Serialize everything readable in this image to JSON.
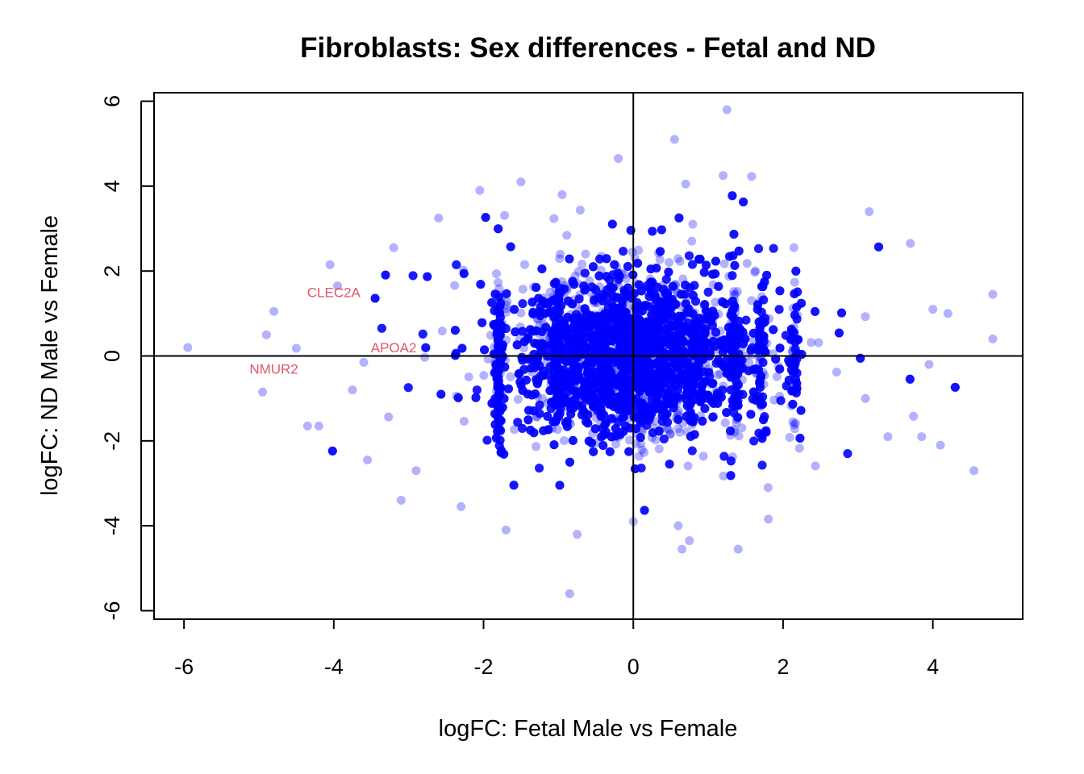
{
  "chart_data": {
    "type": "scatter",
    "title": "Fibroblasts: Sex differences - Fetal and ND",
    "xlabel": "logFC: Fetal Male vs Female",
    "ylabel": "logFC: ND Male vs Female",
    "xlim": [
      -6.4,
      5.2
    ],
    "ylim": [
      -6.2,
      6.2
    ],
    "x_ticks": [
      "-6",
      "-4",
      "-2",
      "0",
      "2",
      "4"
    ],
    "y_ticks": [
      "-6",
      "-4",
      "-2",
      "0",
      "2",
      "4",
      "6"
    ],
    "reference_lines": {
      "x": 0,
      "y": 0
    },
    "point_color": "#0000ff",
    "label_color": "#e3546a",
    "approx_point_count": 12000,
    "center_cloud": {
      "x_sd": 0.7,
      "y_sd": 0.85
    },
    "labeled_points": [
      {
        "label": "CLEC2A",
        "x": -4.0,
        "y": 1.5
      },
      {
        "label": "APOA2",
        "x": -3.2,
        "y": 0.2
      },
      {
        "label": "NMUR2",
        "x": -4.8,
        "y": -0.3
      }
    ],
    "outlier_points": [
      {
        "x": -5.95,
        "y": 0.2
      },
      {
        "x": -4.8,
        "y": 1.05
      },
      {
        "x": -4.9,
        "y": 0.5
      },
      {
        "x": -4.95,
        "y": -0.85
      },
      {
        "x": -4.5,
        "y": 0.18
      },
      {
        "x": -4.35,
        "y": -1.65
      },
      {
        "x": -4.2,
        "y": -1.65
      },
      {
        "x": -4.05,
        "y": 2.15
      },
      {
        "x": -3.95,
        "y": 1.65
      },
      {
        "x": -3.75,
        "y": -0.8
      },
      {
        "x": -3.6,
        "y": -0.15
      },
      {
        "x": -3.55,
        "y": -2.45
      },
      {
        "x": -3.2,
        "y": 2.55
      },
      {
        "x": -3.1,
        "y": -3.4
      },
      {
        "x": -2.9,
        "y": -2.7
      },
      {
        "x": -2.6,
        "y": 3.25
      },
      {
        "x": -2.3,
        "y": -3.55
      },
      {
        "x": -2.05,
        "y": 3.9
      },
      {
        "x": -1.7,
        "y": -4.1
      },
      {
        "x": -1.5,
        "y": 4.1
      },
      {
        "x": -0.95,
        "y": 3.8
      },
      {
        "x": -0.85,
        "y": -5.6
      },
      {
        "x": -0.75,
        "y": -4.2
      },
      {
        "x": -0.2,
        "y": 4.65
      },
      {
        "x": 0.0,
        "y": -3.9
      },
      {
        "x": 0.55,
        "y": 5.1
      },
      {
        "x": 1.25,
        "y": 5.8
      },
      {
        "x": 1.2,
        "y": 4.25
      },
      {
        "x": 0.7,
        "y": 4.05
      },
      {
        "x": 0.6,
        "y": -4.0
      },
      {
        "x": 0.65,
        "y": -4.55
      },
      {
        "x": 0.75,
        "y": -4.35
      },
      {
        "x": 1.4,
        "y": -4.55
      },
      {
        "x": 1.8,
        "y": -3.1
      },
      {
        "x": 3.15,
        "y": 3.4
      },
      {
        "x": 3.7,
        "y": 2.65
      },
      {
        "x": 4.0,
        "y": 1.1
      },
      {
        "x": 4.2,
        "y": 1.0
      },
      {
        "x": 4.8,
        "y": 1.45
      },
      {
        "x": 4.8,
        "y": 0.4
      },
      {
        "x": 4.1,
        "y": -2.1
      },
      {
        "x": 4.55,
        "y": -2.7
      },
      {
        "x": 3.85,
        "y": -1.9
      },
      {
        "x": 3.4,
        "y": -1.9
      },
      {
        "x": 3.95,
        "y": -0.2
      },
      {
        "x": 3.1,
        "y": -1.0
      }
    ]
  }
}
